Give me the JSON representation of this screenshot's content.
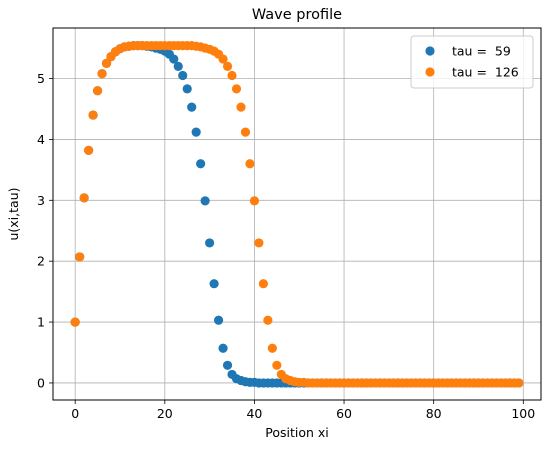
{
  "chart_data": {
    "type": "scatter",
    "title": "Wave profile",
    "xlabel": "Position xi",
    "ylabel": "u(xi,tau)",
    "xlim": [
      -4.95,
      103.95
    ],
    "ylim": [
      -0.28,
      5.83
    ],
    "xticks": [
      0,
      20,
      40,
      60,
      80,
      100
    ],
    "yticks": [
      0,
      1,
      2,
      3,
      4,
      5
    ],
    "grid": true,
    "legend_position": "top-right",
    "series": [
      {
        "name": "tau =  59",
        "color": "#1f77b4",
        "x": [
          0,
          1,
          2,
          3,
          4,
          5,
          6,
          7,
          8,
          9,
          10,
          11,
          12,
          13,
          14,
          15,
          16,
          17,
          18,
          19,
          20,
          21,
          22,
          23,
          24,
          25,
          26,
          27,
          28,
          29,
          30,
          31,
          32,
          33,
          34,
          35,
          36,
          37,
          38,
          39,
          40,
          41,
          42,
          43,
          44,
          45,
          46,
          47,
          48,
          49,
          50,
          51,
          52,
          53,
          54,
          55,
          56,
          57,
          58,
          59,
          60,
          61,
          62,
          63,
          64,
          65,
          66,
          67,
          68,
          69,
          70,
          71,
          72,
          73,
          74,
          75,
          76,
          77,
          78,
          79,
          80,
          81,
          82,
          83,
          84,
          85,
          86,
          87,
          88,
          89,
          90,
          91,
          92,
          93,
          94,
          95,
          96,
          97,
          98,
          99
        ],
        "y": [
          1.0,
          2.07,
          3.04,
          3.82,
          4.4,
          4.8,
          5.08,
          5.25,
          5.36,
          5.44,
          5.49,
          5.52,
          5.53,
          5.54,
          5.54,
          5.54,
          5.53,
          5.52,
          5.5,
          5.48,
          5.45,
          5.4,
          5.32,
          5.2,
          5.05,
          4.83,
          4.53,
          4.12,
          3.6,
          2.99,
          2.3,
          1.63,
          1.03,
          0.57,
          0.29,
          0.14,
          0.07,
          0.04,
          0.02,
          0.01,
          0.01,
          0.0,
          0.0,
          0.0,
          0.0,
          0.0,
          0.0,
          0.0,
          0.0,
          0.0,
          0.0,
          0.0,
          0.0,
          0.0,
          0.0,
          0.0,
          0.0,
          0.0,
          0.0,
          0.0,
          0.0,
          0.0,
          0.0,
          0.0,
          0.0,
          0.0,
          0.0,
          0.0,
          0.0,
          0.0,
          0.0,
          0.0,
          0.0,
          0.0,
          0.0,
          0.0,
          0.0,
          0.0,
          0.0,
          0.0,
          0.0,
          0.0,
          0.0,
          0.0,
          0.0,
          0.0,
          0.0,
          0.0,
          0.0,
          0.0,
          0.0,
          0.0,
          0.0,
          0.0,
          0.0,
          0.0,
          0.0,
          0.0,
          0.0,
          0.0
        ]
      },
      {
        "name": "tau =  126",
        "color": "#ff7f0e",
        "x": [
          0,
          1,
          2,
          3,
          4,
          5,
          6,
          7,
          8,
          9,
          10,
          11,
          12,
          13,
          14,
          15,
          16,
          17,
          18,
          19,
          20,
          21,
          22,
          23,
          24,
          25,
          26,
          27,
          28,
          29,
          30,
          31,
          32,
          33,
          34,
          35,
          36,
          37,
          38,
          39,
          40,
          41,
          42,
          43,
          44,
          45,
          46,
          47,
          48,
          49,
          50,
          51,
          52,
          53,
          54,
          55,
          56,
          57,
          58,
          59,
          60,
          61,
          62,
          63,
          64,
          65,
          66,
          67,
          68,
          69,
          70,
          71,
          72,
          73,
          74,
          75,
          76,
          77,
          78,
          79,
          80,
          81,
          82,
          83,
          84,
          85,
          86,
          87,
          88,
          89,
          90,
          91,
          92,
          93,
          94,
          95,
          96,
          97,
          98,
          99
        ],
        "y": [
          1.0,
          2.07,
          3.04,
          3.82,
          4.4,
          4.8,
          5.08,
          5.25,
          5.36,
          5.44,
          5.49,
          5.52,
          5.53,
          5.54,
          5.54,
          5.54,
          5.54,
          5.54,
          5.54,
          5.54,
          5.54,
          5.54,
          5.54,
          5.54,
          5.54,
          5.54,
          5.54,
          5.53,
          5.52,
          5.5,
          5.48,
          5.45,
          5.4,
          5.32,
          5.2,
          5.05,
          4.83,
          4.53,
          4.12,
          3.6,
          2.99,
          2.3,
          1.63,
          1.03,
          0.57,
          0.29,
          0.14,
          0.07,
          0.04,
          0.02,
          0.01,
          0.01,
          0.0,
          0.0,
          0.0,
          0.0,
          0.0,
          0.0,
          0.0,
          0.0,
          0.0,
          0.0,
          0.0,
          0.0,
          0.0,
          0.0,
          0.0,
          0.0,
          0.0,
          0.0,
          0.0,
          0.0,
          0.0,
          0.0,
          0.0,
          0.0,
          0.0,
          0.0,
          0.0,
          0.0,
          0.0,
          0.0,
          0.0,
          0.0,
          0.0,
          0.0,
          0.0,
          0.0,
          0.0,
          0.0,
          0.0,
          0.0,
          0.0,
          0.0,
          0.0,
          0.0,
          0.0,
          0.0,
          0.0,
          0.0
        ]
      }
    ]
  }
}
